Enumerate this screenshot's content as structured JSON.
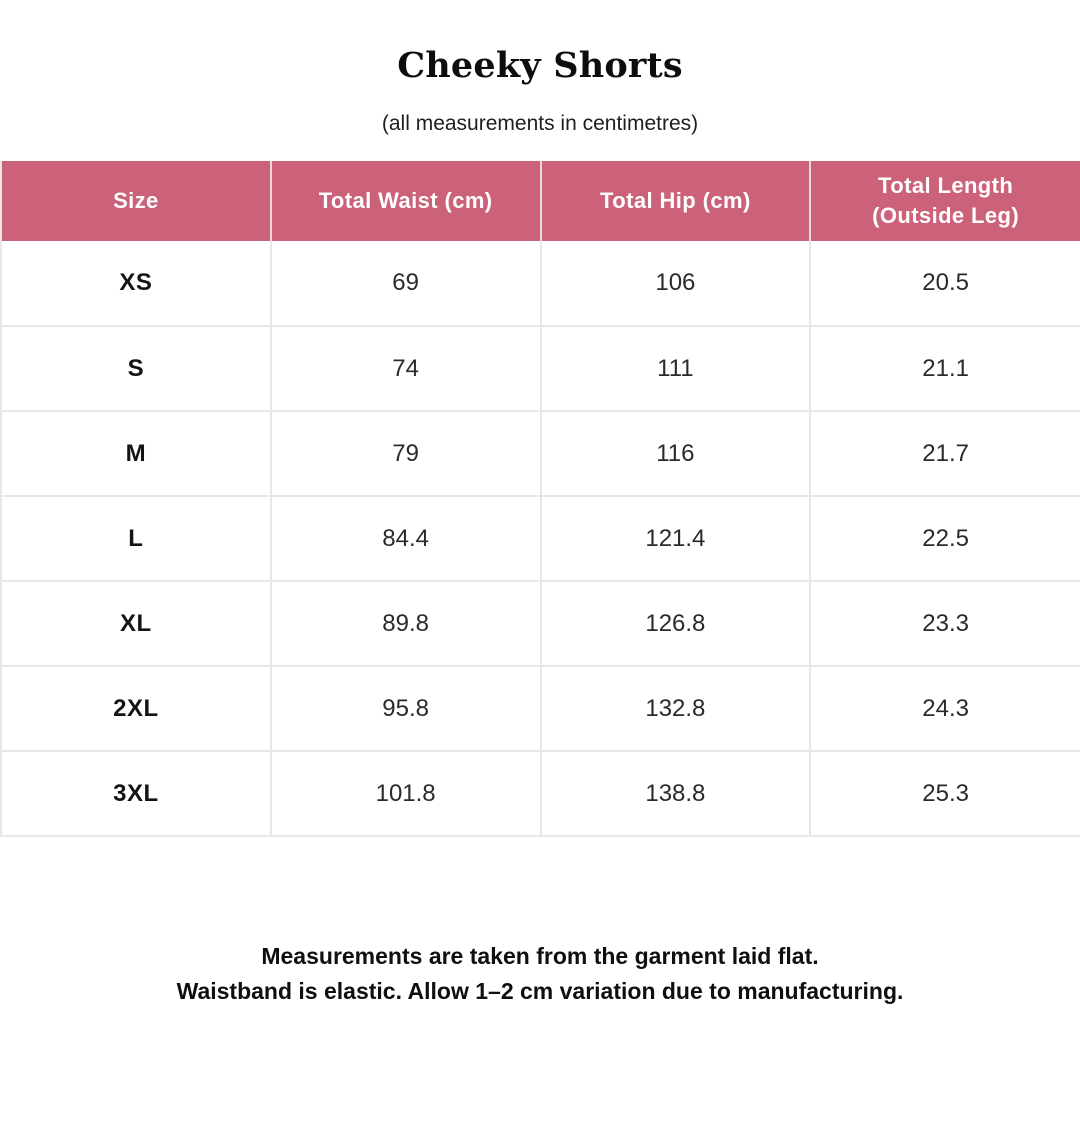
{
  "chart_data": {
    "type": "table",
    "title": "Cheeky Shorts",
    "subtitle": "(all measurements in centimetres)",
    "columns": [
      "Size",
      "Total Waist (cm)",
      "Total Hip (cm)",
      "Total Length (Outside Leg)"
    ],
    "rows": [
      [
        "XS",
        "69",
        "106",
        "20.5"
      ],
      [
        "S",
        "74",
        "111",
        "21.1"
      ],
      [
        "M",
        "79",
        "116",
        "21.7"
      ],
      [
        "L",
        "84.4",
        "121.4",
        "22.5"
      ],
      [
        "XL",
        "89.8",
        "126.8",
        "23.3"
      ],
      [
        "2XL",
        "95.8",
        "132.8",
        "24.3"
      ],
      [
        "3XL",
        "101.8",
        "138.8",
        "25.3"
      ]
    ],
    "notes": [
      "Measurements are taken from the garment laid flat.",
      "Waistband is elastic. Allow 1–2 cm variation due to manufacturing."
    ],
    "layout_hints": {
      "header_bg": "#cc617a",
      "header_text": "#ffffff",
      "border": "#e7e7e7",
      "grid": true
    }
  }
}
